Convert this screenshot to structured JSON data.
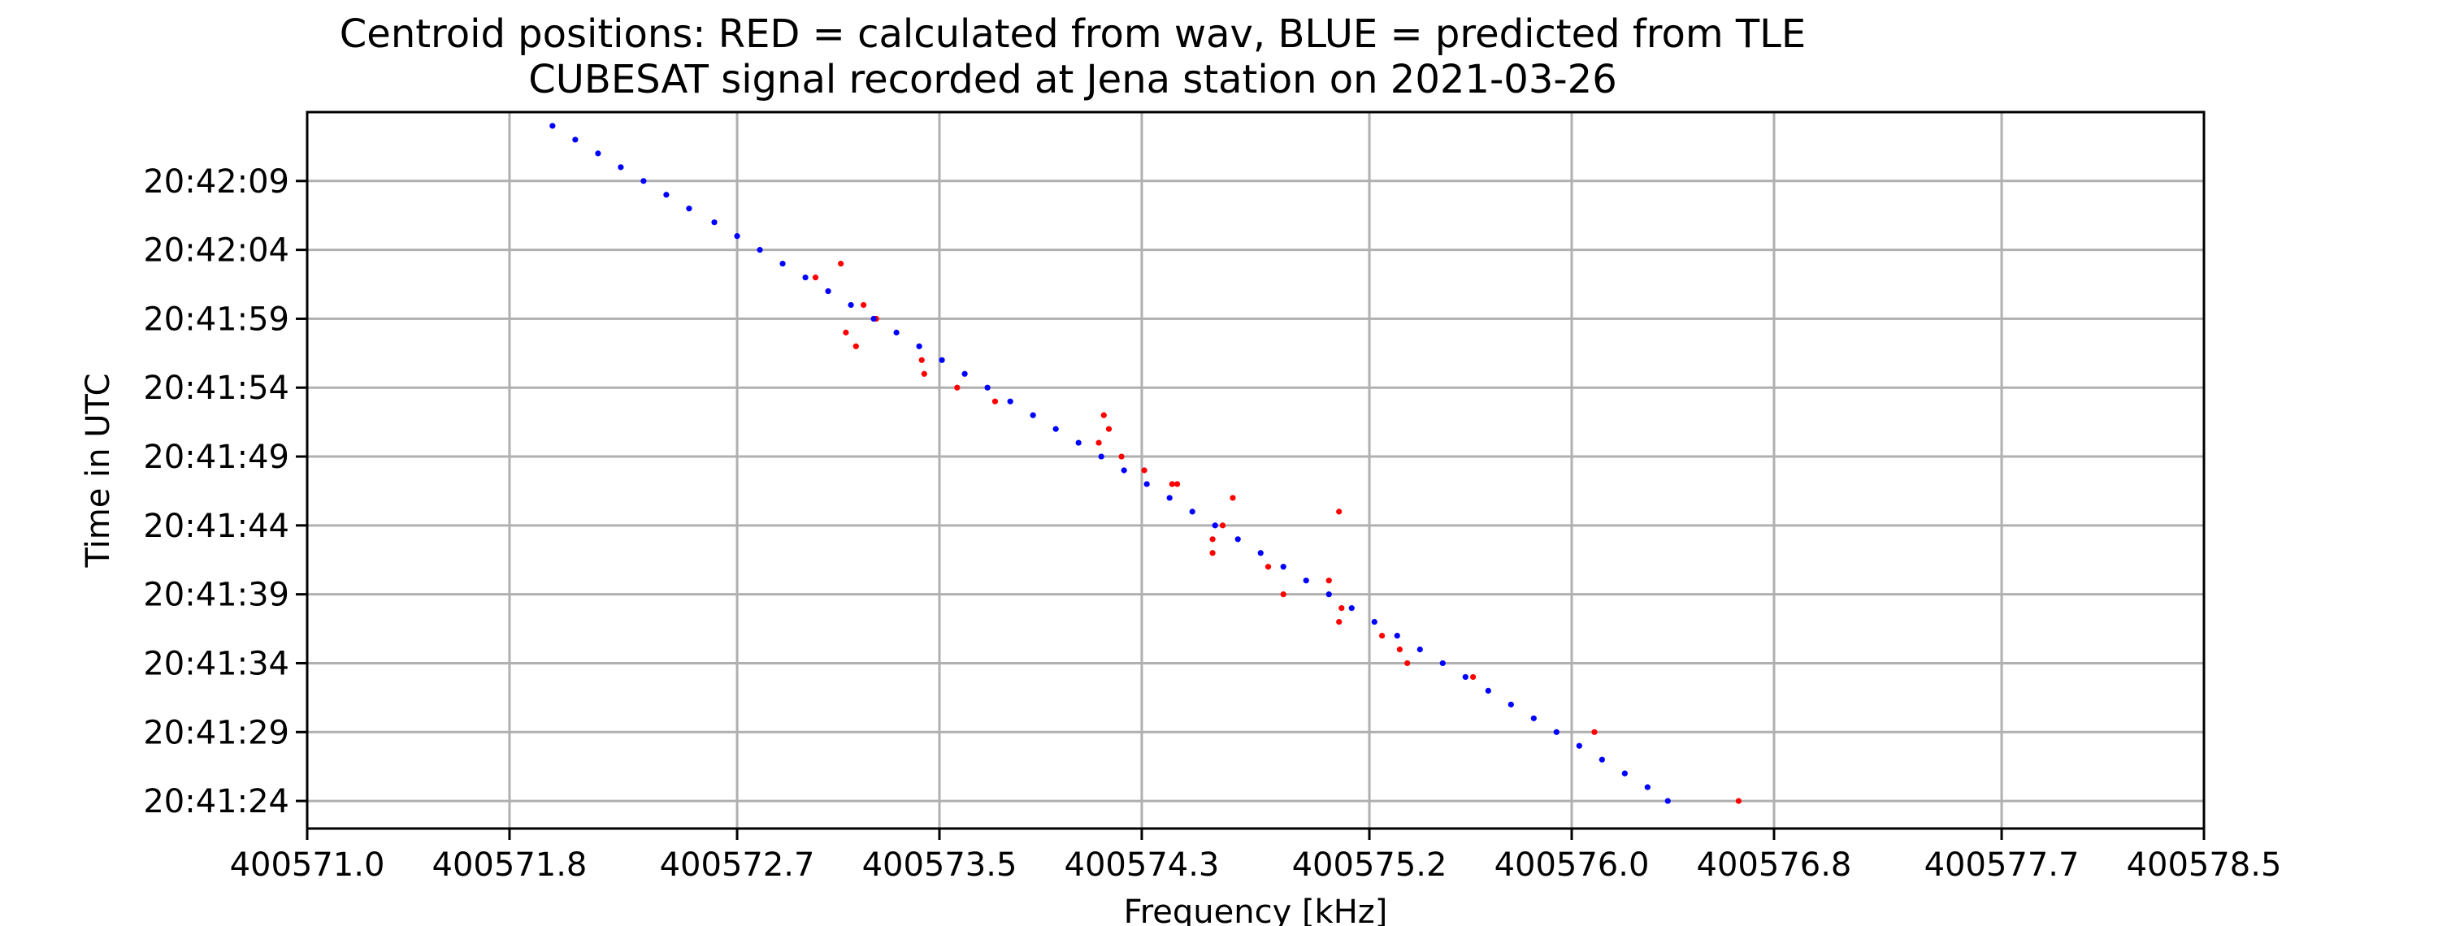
{
  "chart_data": {
    "type": "scatter",
    "title": "Centroid positions: RED = calculated from wav, BLUE = predicted from TLE",
    "subtitle": "CUBESAT signal recorded at Jena station on 2021-03-26",
    "xlabel": "Frequency [kHz]",
    "ylabel": "Time in UTC",
    "xlim": [
      400571.0,
      400578.5
    ],
    "x_ticks": [
      400571.0,
      400571.8,
      400572.7,
      400573.5,
      400574.3,
      400575.2,
      400576.0,
      400576.8,
      400577.7,
      400578.5
    ],
    "x_tick_labels": [
      "400571.0",
      "400571.8",
      "400572.7",
      "400573.5",
      "400574.3",
      "400575.2",
      "400576.0",
      "400576.8",
      "400577.7",
      "400578.5"
    ],
    "ylim": [
      "20:41:22",
      "20:42:14"
    ],
    "y_ticks": [
      "20:41:24",
      "20:41:29",
      "20:41:34",
      "20:41:39",
      "20:41:44",
      "20:41:49",
      "20:41:54",
      "20:41:59",
      "20:42:04",
      "20:42:09"
    ],
    "grid": true,
    "colors": {
      "red": "#ff0000",
      "blue": "#0000ff"
    },
    "series": [
      {
        "color": "red",
        "points": [
          {
            "x": 400576.66,
            "y": "20:41:24"
          },
          {
            "x": 400576.09,
            "y": "20:41:29"
          },
          {
            "x": 400575.61,
            "y": "20:41:33"
          },
          {
            "x": 400575.35,
            "y": "20:41:34"
          },
          {
            "x": 400575.32,
            "y": "20:41:35"
          },
          {
            "x": 400575.25,
            "y": "20:41:36"
          },
          {
            "x": 400575.08,
            "y": "20:41:37"
          },
          {
            "x": 400575.09,
            "y": "20:41:38"
          },
          {
            "x": 400575.04,
            "y": "20:41:40"
          },
          {
            "x": 400574.86,
            "y": "20:41:39"
          },
          {
            "x": 400574.8,
            "y": "20:41:41"
          },
          {
            "x": 400574.58,
            "y": "20:41:42"
          },
          {
            "x": 400574.58,
            "y": "20:41:43"
          },
          {
            "x": 400574.62,
            "y": "20:41:44"
          },
          {
            "x": 400575.08,
            "y": "20:41:45"
          },
          {
            "x": 400574.66,
            "y": "20:41:46"
          },
          {
            "x": 400574.44,
            "y": "20:41:47"
          },
          {
            "x": 400574.42,
            "y": "20:41:47"
          },
          {
            "x": 400574.31,
            "y": "20:41:48"
          },
          {
            "x": 400574.22,
            "y": "20:41:49"
          },
          {
            "x": 400574.13,
            "y": "20:41:50"
          },
          {
            "x": 400574.17,
            "y": "20:41:51"
          },
          {
            "x": 400574.15,
            "y": "20:41:52"
          },
          {
            "x": 400573.72,
            "y": "20:41:53"
          },
          {
            "x": 400573.57,
            "y": "20:41:54"
          },
          {
            "x": 400573.44,
            "y": "20:41:55"
          },
          {
            "x": 400573.43,
            "y": "20:41:56"
          },
          {
            "x": 400573.17,
            "y": "20:41:57"
          },
          {
            "x": 400573.13,
            "y": "20:41:58"
          },
          {
            "x": 400573.25,
            "y": "20:41:59"
          },
          {
            "x": 400573.2,
            "y": "20:42:00"
          },
          {
            "x": 400573.06,
            "y": "20:42:01"
          },
          {
            "x": 400573.01,
            "y": "20:42:02"
          },
          {
            "x": 400573.11,
            "y": "20:42:03"
          }
        ]
      },
      {
        "color": "blue",
        "points": [
          {
            "x": 400571.97,
            "y": "20:42:13"
          },
          {
            "x": 400572.06,
            "y": "20:42:12"
          },
          {
            "x": 400572.15,
            "y": "20:42:11"
          },
          {
            "x": 400572.24,
            "y": "20:42:10"
          },
          {
            "x": 400572.33,
            "y": "20:42:09"
          },
          {
            "x": 400572.42,
            "y": "20:42:08"
          },
          {
            "x": 400572.51,
            "y": "20:42:07"
          },
          {
            "x": 400572.61,
            "y": "20:42:06"
          },
          {
            "x": 400572.7,
            "y": "20:42:05"
          },
          {
            "x": 400572.79,
            "y": "20:42:04"
          },
          {
            "x": 400572.88,
            "y": "20:42:03"
          },
          {
            "x": 400572.97,
            "y": "20:42:02"
          },
          {
            "x": 400573.06,
            "y": "20:42:01"
          },
          {
            "x": 400573.15,
            "y": "20:42:00"
          },
          {
            "x": 400573.24,
            "y": "20:41:59"
          },
          {
            "x": 400573.33,
            "y": "20:41:58"
          },
          {
            "x": 400573.42,
            "y": "20:41:57"
          },
          {
            "x": 400573.51,
            "y": "20:41:56"
          },
          {
            "x": 400573.6,
            "y": "20:41:55"
          },
          {
            "x": 400573.69,
            "y": "20:41:54"
          },
          {
            "x": 400573.78,
            "y": "20:41:53"
          },
          {
            "x": 400573.87,
            "y": "20:41:52"
          },
          {
            "x": 400573.96,
            "y": "20:41:51"
          },
          {
            "x": 400574.05,
            "y": "20:41:50"
          },
          {
            "x": 400574.14,
            "y": "20:41:49"
          },
          {
            "x": 400574.23,
            "y": "20:41:48"
          },
          {
            "x": 400574.32,
            "y": "20:41:47"
          },
          {
            "x": 400574.41,
            "y": "20:41:46"
          },
          {
            "x": 400574.5,
            "y": "20:41:45"
          },
          {
            "x": 400574.59,
            "y": "20:41:44"
          },
          {
            "x": 400574.68,
            "y": "20:41:43"
          },
          {
            "x": 400574.77,
            "y": "20:41:42"
          },
          {
            "x": 400574.86,
            "y": "20:41:41"
          },
          {
            "x": 400574.95,
            "y": "20:41:40"
          },
          {
            "x": 400575.04,
            "y": "20:41:39"
          },
          {
            "x": 400575.13,
            "y": "20:41:38"
          },
          {
            "x": 400575.22,
            "y": "20:41:37"
          },
          {
            "x": 400575.31,
            "y": "20:41:36"
          },
          {
            "x": 400575.4,
            "y": "20:41:35"
          },
          {
            "x": 400575.49,
            "y": "20:41:34"
          },
          {
            "x": 400575.58,
            "y": "20:41:33"
          },
          {
            "x": 400575.67,
            "y": "20:41:32"
          },
          {
            "x": 400575.76,
            "y": "20:41:31"
          },
          {
            "x": 400575.85,
            "y": "20:41:30"
          },
          {
            "x": 400575.94,
            "y": "20:41:29"
          },
          {
            "x": 400576.03,
            "y": "20:41:28"
          },
          {
            "x": 400576.12,
            "y": "20:41:27"
          },
          {
            "x": 400576.21,
            "y": "20:41:26"
          },
          {
            "x": 400576.3,
            "y": "20:41:25"
          },
          {
            "x": 400576.38,
            "y": "20:41:24"
          }
        ]
      }
    ]
  }
}
